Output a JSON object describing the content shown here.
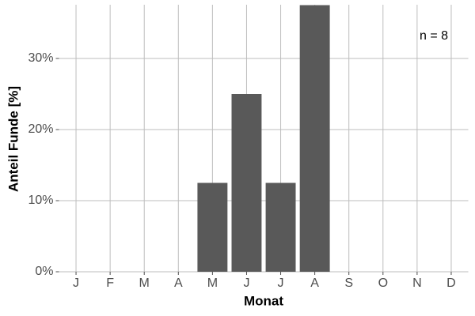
{
  "chart_data": {
    "type": "bar",
    "categories": [
      "J",
      "F",
      "M",
      "A",
      "M",
      "J",
      "J",
      "A",
      "S",
      "O",
      "N",
      "D"
    ],
    "values": [
      0,
      0,
      0,
      0,
      12.5,
      25,
      12.5,
      37.5,
      0,
      0,
      0,
      0
    ],
    "color": "#595959",
    "xlabel": "Monat",
    "ylabel": "Anteil Funde [%]",
    "annotation": "n = 8",
    "ylim": [
      0,
      37.5
    ],
    "yticks": [
      {
        "value": 0,
        "label": "0%"
      },
      {
        "value": 10,
        "label": "10%"
      },
      {
        "value": 20,
        "label": "20%"
      },
      {
        "value": 30,
        "label": "30%"
      }
    ],
    "grid": true
  }
}
